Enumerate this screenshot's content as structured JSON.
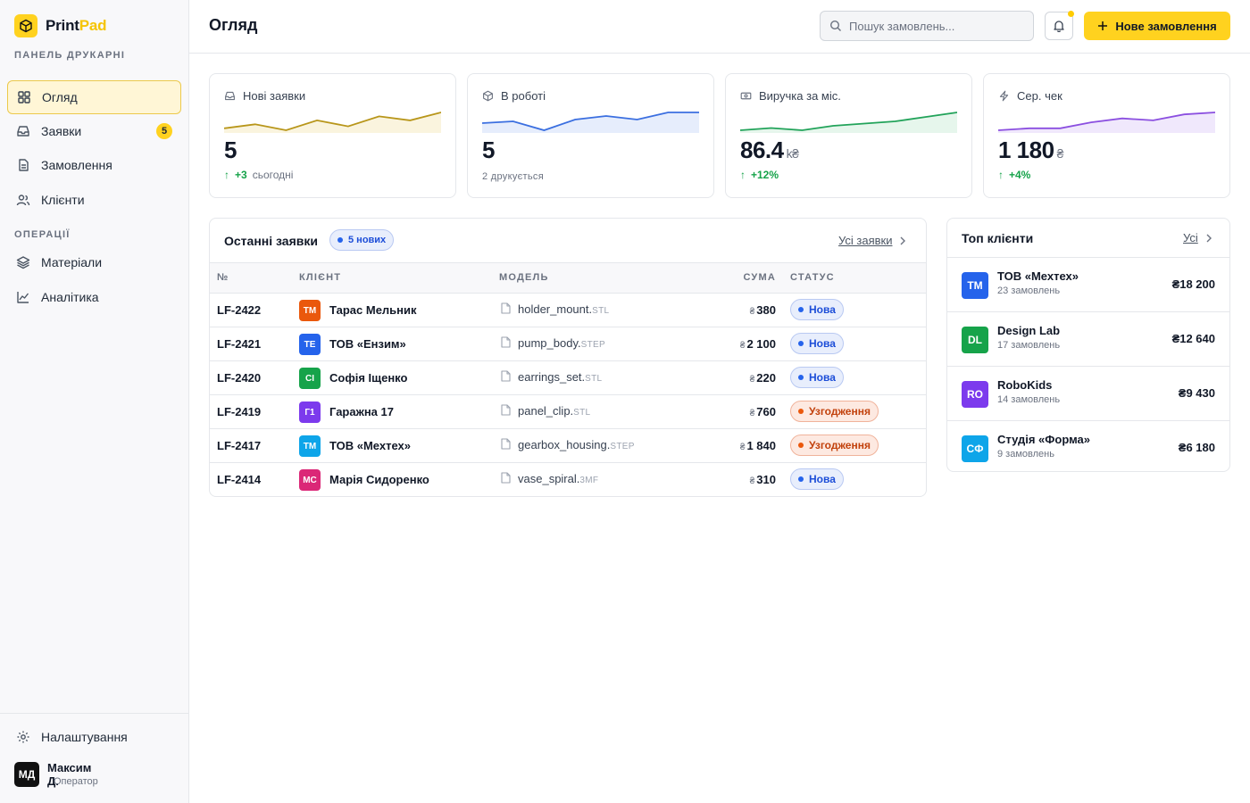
{
  "brand": {
    "name_part1": "Print",
    "name_part2": "Pad",
    "subtitle": "ПАНЕЛЬ ДРУКАРНІ"
  },
  "sidebar": {
    "items": [
      {
        "label": "Огляд",
        "icon": "grid-icon",
        "active": true
      },
      {
        "label": "Заявки",
        "icon": "inbox-icon",
        "badge": "5"
      },
      {
        "label": "Замовлення",
        "icon": "document-icon"
      },
      {
        "label": "Клієнти",
        "icon": "users-icon"
      }
    ],
    "ops_section": "ОПЕРАЦІЇ",
    "ops_items": [
      {
        "label": "Матеріали",
        "icon": "layers-icon"
      },
      {
        "label": "Аналітика",
        "icon": "chart-line-icon"
      }
    ],
    "settings_label": "Налаштування",
    "user": {
      "initials": "МД",
      "name": "Максим Д.",
      "role": "Оператор"
    }
  },
  "header": {
    "title": "Огляд",
    "search_placeholder": "Пошук замовлень...",
    "new_order_label": "Нове замовлення"
  },
  "stats": [
    {
      "label": "Нові заявки",
      "icon": "inbox-icon",
      "value": "5",
      "delta": "+3",
      "delta_text": "сьогодні",
      "color": "#b8961a",
      "fill": "#faf4de",
      "trend": [
        2,
        4,
        1,
        6,
        3,
        8,
        6,
        10
      ]
    },
    {
      "label": "В роботі",
      "icon": "box-icon",
      "value": "5",
      "sub": "2 друкується",
      "color": "#3b6fe0",
      "fill": "#e6edfc",
      "trend": [
        5,
        6,
        1,
        7,
        9,
        7,
        11,
        11
      ]
    },
    {
      "label": "Виручка за міс.",
      "icon": "cash-icon",
      "value": "86.4",
      "unit": "k₴",
      "delta": "+12%",
      "color": "#22a35a",
      "fill": "#e6f6ec",
      "trend": [
        2,
        3,
        2,
        4,
        5,
        6,
        8,
        10
      ]
    },
    {
      "label": "Сер. чек",
      "icon": "bolt-icon",
      "value": "1 180",
      "unit": "₴",
      "delta": "+4%",
      "color": "#8b4fe0",
      "fill": "#f0e8fc",
      "trend": [
        2,
        3,
        3,
        6,
        8,
        7,
        10,
        11
      ]
    }
  ],
  "orders": {
    "title": "Останні заявки",
    "new_badge": "5 нових",
    "all_link": "Усі заявки",
    "columns": [
      "№",
      "КЛІЄНТ",
      "МОДЕЛЬ",
      "СУМА",
      "СТАТУС"
    ],
    "currency": "₴",
    "rows": [
      {
        "id": "LF-2422",
        "initials": "ТМ",
        "color": "#ea580c",
        "client": "Тарас Мельник",
        "file": "holder_mount.",
        "ext": "STL",
        "sum": "380",
        "status": "Нова",
        "kind": "new"
      },
      {
        "id": "LF-2421",
        "initials": "ТЕ",
        "color": "#2563eb",
        "client": "ТОВ «Ензим»",
        "file": "pump_body.",
        "ext": "STEP",
        "sum": "2 100",
        "status": "Нова",
        "kind": "new"
      },
      {
        "id": "LF-2420",
        "initials": "СІ",
        "color": "#16a34a",
        "client": "Софія Іщенко",
        "file": "earrings_set.",
        "ext": "STL",
        "sum": "220",
        "status": "Нова",
        "kind": "new"
      },
      {
        "id": "LF-2419",
        "initials": "Г1",
        "color": "#7c3aed",
        "client": "Гаражна 17",
        "file": "panel_clip.",
        "ext": "STL",
        "sum": "760",
        "status": "Узгодження",
        "kind": "agree"
      },
      {
        "id": "LF-2417",
        "initials": "ТМ",
        "color": "#0ea5e9",
        "client": "ТОВ «Мехтех»",
        "file": "gearbox_housing.",
        "ext": "STEP",
        "sum": "1 840",
        "status": "Узгодження",
        "kind": "agree"
      },
      {
        "id": "LF-2414",
        "initials": "МС",
        "color": "#db2777",
        "client": "Марія Сидоренко",
        "file": "vase_spiral.",
        "ext": "3MF",
        "sum": "310",
        "status": "Нова",
        "kind": "new"
      }
    ]
  },
  "clients": {
    "title": "Топ клієнти",
    "all_link": "Усі",
    "rows": [
      {
        "initials": "ТМ",
        "color": "#2563eb",
        "name": "ТОВ «Мехтех»",
        "orders": "23 замовлень",
        "sum": "₴18 200"
      },
      {
        "initials": "DL",
        "color": "#16a34a",
        "name": "Design Lab",
        "orders": "17 замовлень",
        "sum": "₴12 640"
      },
      {
        "initials": "RO",
        "color": "#7c3aed",
        "name": "RoboKids",
        "orders": "14 замовлень",
        "sum": "₴9 430"
      },
      {
        "initials": "СФ",
        "color": "#0ea5e9",
        "name": "Студія «Форма»",
        "orders": "9 замовлень",
        "sum": "₴6 180"
      }
    ]
  }
}
